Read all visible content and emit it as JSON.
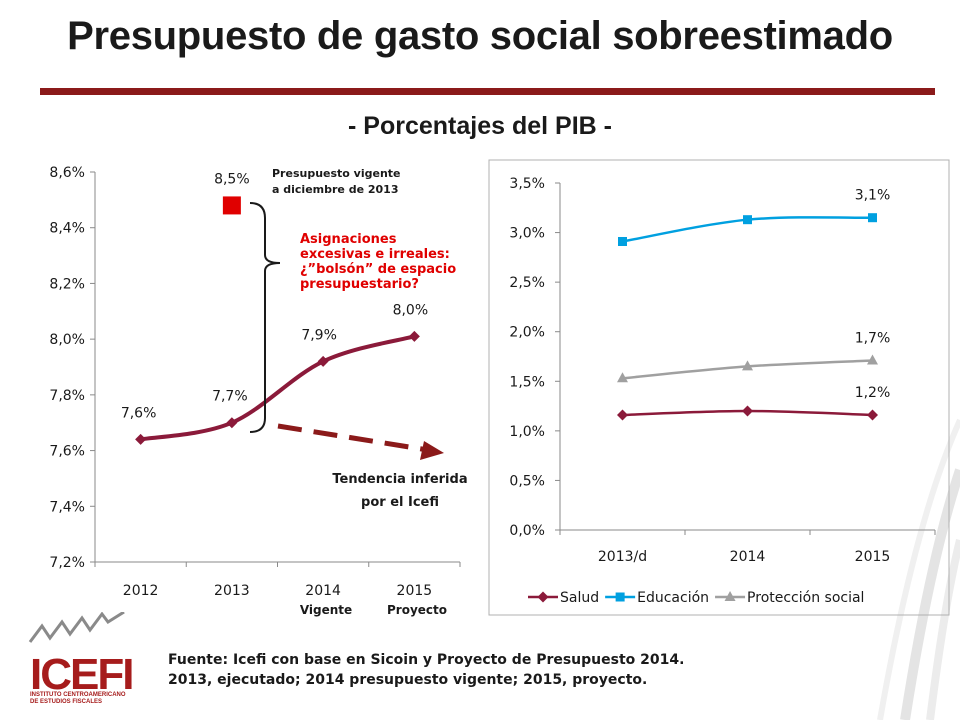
{
  "title": "Presupuesto de gasto social sobreestimado",
  "subtitle": "- Porcentajes del PIB -",
  "colors": {
    "brand": "#8b1a1a",
    "salud": "#8b1a3a",
    "educacion": "#00a0e0",
    "proteccion": "#a0a0a0",
    "vigente": "#e00000"
  },
  "annotations": {
    "vigente_label_1": "Presupuesto vigente",
    "vigente_label_2": "a diciembre de 2013",
    "asignaciones_1": "Asignaciones",
    "asignaciones_2": "excesivas e irreales:",
    "asignaciones_3": "¿”bolsón” de espacio",
    "asignaciones_4": "presupuestario?",
    "tendencia_1": "Tendencia inferida",
    "tendencia_2": "por el Icefi",
    "vigente_tick": "Vigente",
    "proyecto_tick": "Proyecto"
  },
  "source_line_1": "Fuente: Icefi con base en Sicoin y Proyecto de Presupuesto 2014.",
  "source_line_2": "2013, ejecutado; 2014 presupuesto  vigente; 2015, proyecto.",
  "logo": {
    "name": "ICEFI",
    "sub_1": "INSTITUTO CENTROAMERICANO",
    "sub_2": "DE ESTUDIOS FISCALES"
  },
  "chart_data": [
    {
      "type": "line",
      "categories": [
        "2012",
        "2013",
        "2014",
        "2015"
      ],
      "series": [
        {
          "values": [
            7.64,
            7.7,
            7.92,
            8.01
          ],
          "data_labels": [
            "7,6%",
            "7,7%",
            "7,9%",
            "8,0%"
          ]
        }
      ],
      "extra_point": {
        "category": "2013",
        "value": 8.48,
        "label": "8,5%"
      },
      "ylim": [
        7.2,
        8.6
      ],
      "yticks": [
        "7,2%",
        "7,4%",
        "7,6%",
        "7,8%",
        "8,0%",
        "8,2%",
        "8,4%",
        "8,6%"
      ],
      "ytick_values": [
        7.2,
        7.4,
        7.6,
        7.8,
        8.0,
        8.2,
        8.4,
        8.6
      ],
      "grid": false,
      "title": "",
      "xlabel": "",
      "ylabel": ""
    },
    {
      "type": "line",
      "categories": [
        "2013/d",
        "2014",
        "2015"
      ],
      "series": [
        {
          "name": "Salud",
          "values": [
            1.16,
            1.2,
            1.16
          ],
          "marker": "diamond",
          "data_label_last": "1,2%"
        },
        {
          "name": "Educación",
          "values": [
            2.91,
            3.13,
            3.15
          ],
          "marker": "square",
          "data_label_last": "3,1%"
        },
        {
          "name": "Protección social",
          "values": [
            1.53,
            1.65,
            1.71
          ],
          "marker": "triangle",
          "data_label_last": "1,7%"
        }
      ],
      "ylim": [
        0,
        3.5
      ],
      "yticks": [
        "0,0%",
        "0,5%",
        "1,0%",
        "1,5%",
        "2,0%",
        "2,5%",
        "3,0%",
        "3,5%"
      ],
      "ytick_values": [
        0,
        0.5,
        1.0,
        1.5,
        2.0,
        2.5,
        3.0,
        3.5
      ],
      "legend": "bottom",
      "grid": false,
      "title": "",
      "xlabel": "",
      "ylabel": ""
    }
  ]
}
